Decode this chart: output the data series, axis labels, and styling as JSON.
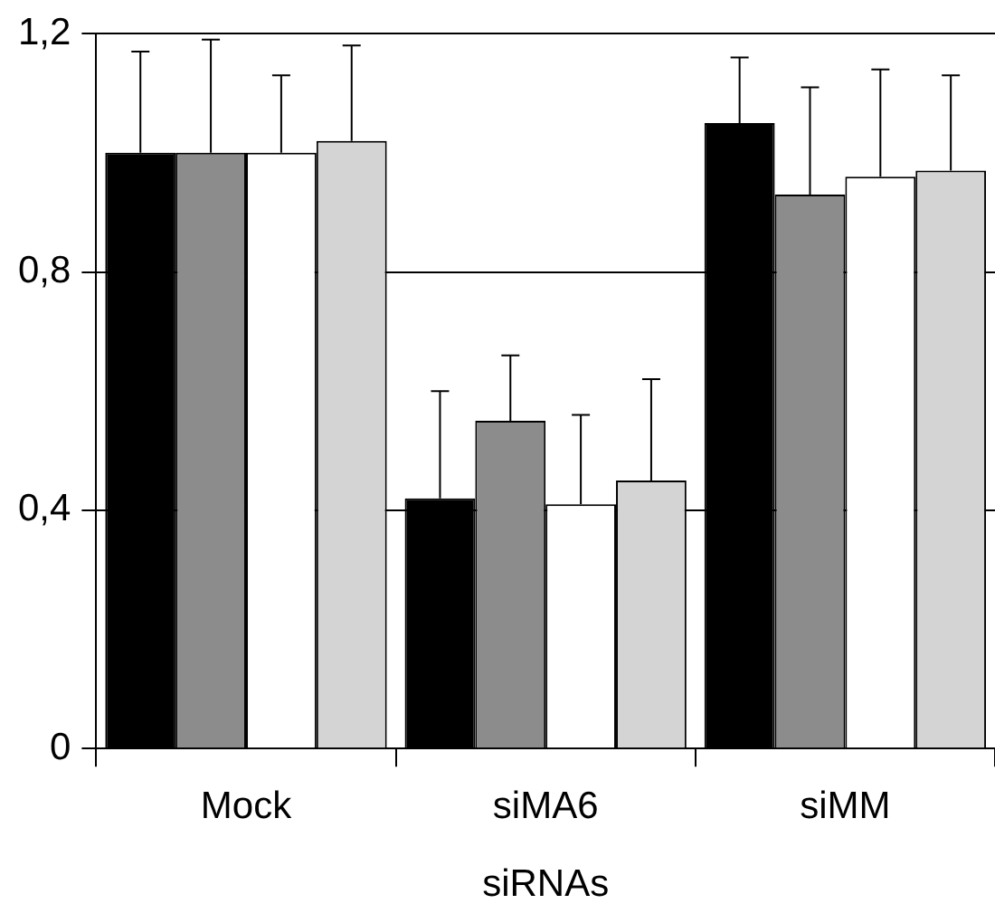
{
  "chart_data": {
    "type": "bar",
    "xlabel": "siRNAs",
    "categories": [
      "Mock",
      "siMA6",
      "siMM"
    ],
    "series": [
      {
        "color": "#000000",
        "values": [
          1.0,
          0.42,
          1.05
        ],
        "errors": [
          [
            1.0,
            1.17
          ],
          [
            0.42,
            0.6
          ],
          [
            1.05,
            1.16
          ]
        ]
      },
      {
        "color": "#8c8c8c",
        "values": [
          1.0,
          0.55,
          0.93
        ],
        "errors": [
          [
            1.0,
            1.19
          ],
          [
            0.55,
            0.66
          ],
          [
            0.93,
            1.11
          ]
        ]
      },
      {
        "color": "#ffffff",
        "values": [
          1.0,
          0.41,
          0.96
        ],
        "errors": [
          [
            1.0,
            1.13
          ],
          [
            0.41,
            0.56
          ],
          [
            0.96,
            1.14
          ]
        ]
      },
      {
        "color": "#d4d4d4",
        "values": [
          1.02,
          0.45,
          0.97
        ],
        "errors": [
          [
            1.02,
            1.18
          ],
          [
            0.45,
            0.62
          ],
          [
            0.97,
            1.13
          ]
        ]
      }
    ],
    "ylim": [
      0,
      1.2
    ],
    "yticks": [
      {
        "value": 0,
        "label": "0"
      },
      {
        "value": 0.4,
        "label": "0,4"
      },
      {
        "value": 0.8,
        "label": "0,8"
      },
      {
        "value": 1.2,
        "label": "1,2"
      }
    ],
    "grid": "y",
    "legend": false
  }
}
